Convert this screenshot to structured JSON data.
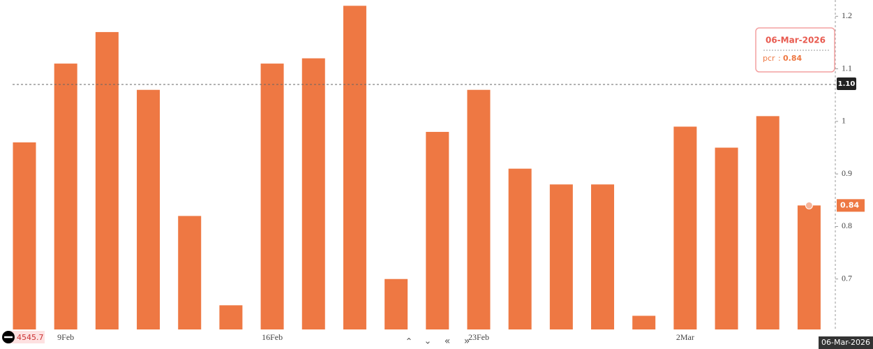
{
  "chart_data": {
    "type": "bar",
    "categories": [
      null,
      "9Feb",
      null,
      null,
      null,
      null,
      "16Feb",
      null,
      null,
      null,
      null,
      "23Feb",
      null,
      null,
      null,
      null,
      "2Mar",
      null,
      null,
      null
    ],
    "series": [
      {
        "name": "pcr",
        "color": "#ee7843",
        "values": [
          0.96,
          1.11,
          1.17,
          1.06,
          0.82,
          0.65,
          1.11,
          1.12,
          1.22,
          0.7,
          0.98,
          1.06,
          0.91,
          0.88,
          0.88,
          0.63,
          0.99,
          0.95,
          1.01,
          0.84
        ]
      }
    ],
    "ylim": [
      0.604,
      1.231
    ],
    "yticks": [
      0.7,
      0.8,
      0.9,
      1,
      1.1,
      1.2
    ],
    "crosshair_label": "1.10",
    "tooltip_date": "06-Mar-2026",
    "footer_date": "06-Mar-2026",
    "footer_left_value": "4545.7"
  }
}
